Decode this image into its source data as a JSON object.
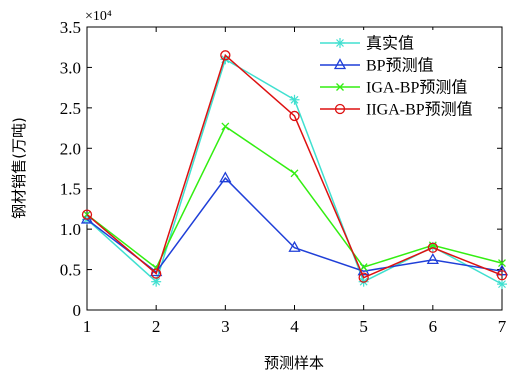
{
  "chart_data": {
    "type": "line",
    "xlabel": "预测样本",
    "ylabel": "钢材销售(万吨)",
    "y_multiplier_label": "×10⁴",
    "x": [
      1,
      2,
      3,
      4,
      5,
      6,
      7
    ],
    "x_ticks": [
      "1",
      "2",
      "3",
      "4",
      "5",
      "6",
      "7"
    ],
    "y_ticks": [
      "0",
      "0.5",
      "1.0",
      "1.5",
      "2.0",
      "2.5",
      "3.0",
      "3.5"
    ],
    "xlim": [
      1,
      7
    ],
    "ylim": [
      0,
      3.5
    ],
    "legend_position": "top-right",
    "grid": false,
    "series": [
      {
        "name": "真实值",
        "color": "#40e0d0",
        "marker": "asterisk",
        "values": [
          1.12,
          0.35,
          3.1,
          2.6,
          0.35,
          0.78,
          0.32
        ]
      },
      {
        "name": "BP预测值",
        "color": "#1f3fd8",
        "marker": "triangle",
        "values": [
          1.12,
          0.47,
          1.63,
          0.77,
          0.48,
          0.62,
          0.48
        ]
      },
      {
        "name": "IGA-BP预测值",
        "color": "#33ee11",
        "marker": "x",
        "values": [
          1.18,
          0.52,
          2.27,
          1.69,
          0.53,
          0.8,
          0.58
        ]
      },
      {
        "name": "IIGA-BP预测值",
        "color": "#dd1111",
        "marker": "circle",
        "values": [
          1.18,
          0.45,
          3.15,
          2.4,
          0.4,
          0.77,
          0.43
        ]
      }
    ]
  }
}
